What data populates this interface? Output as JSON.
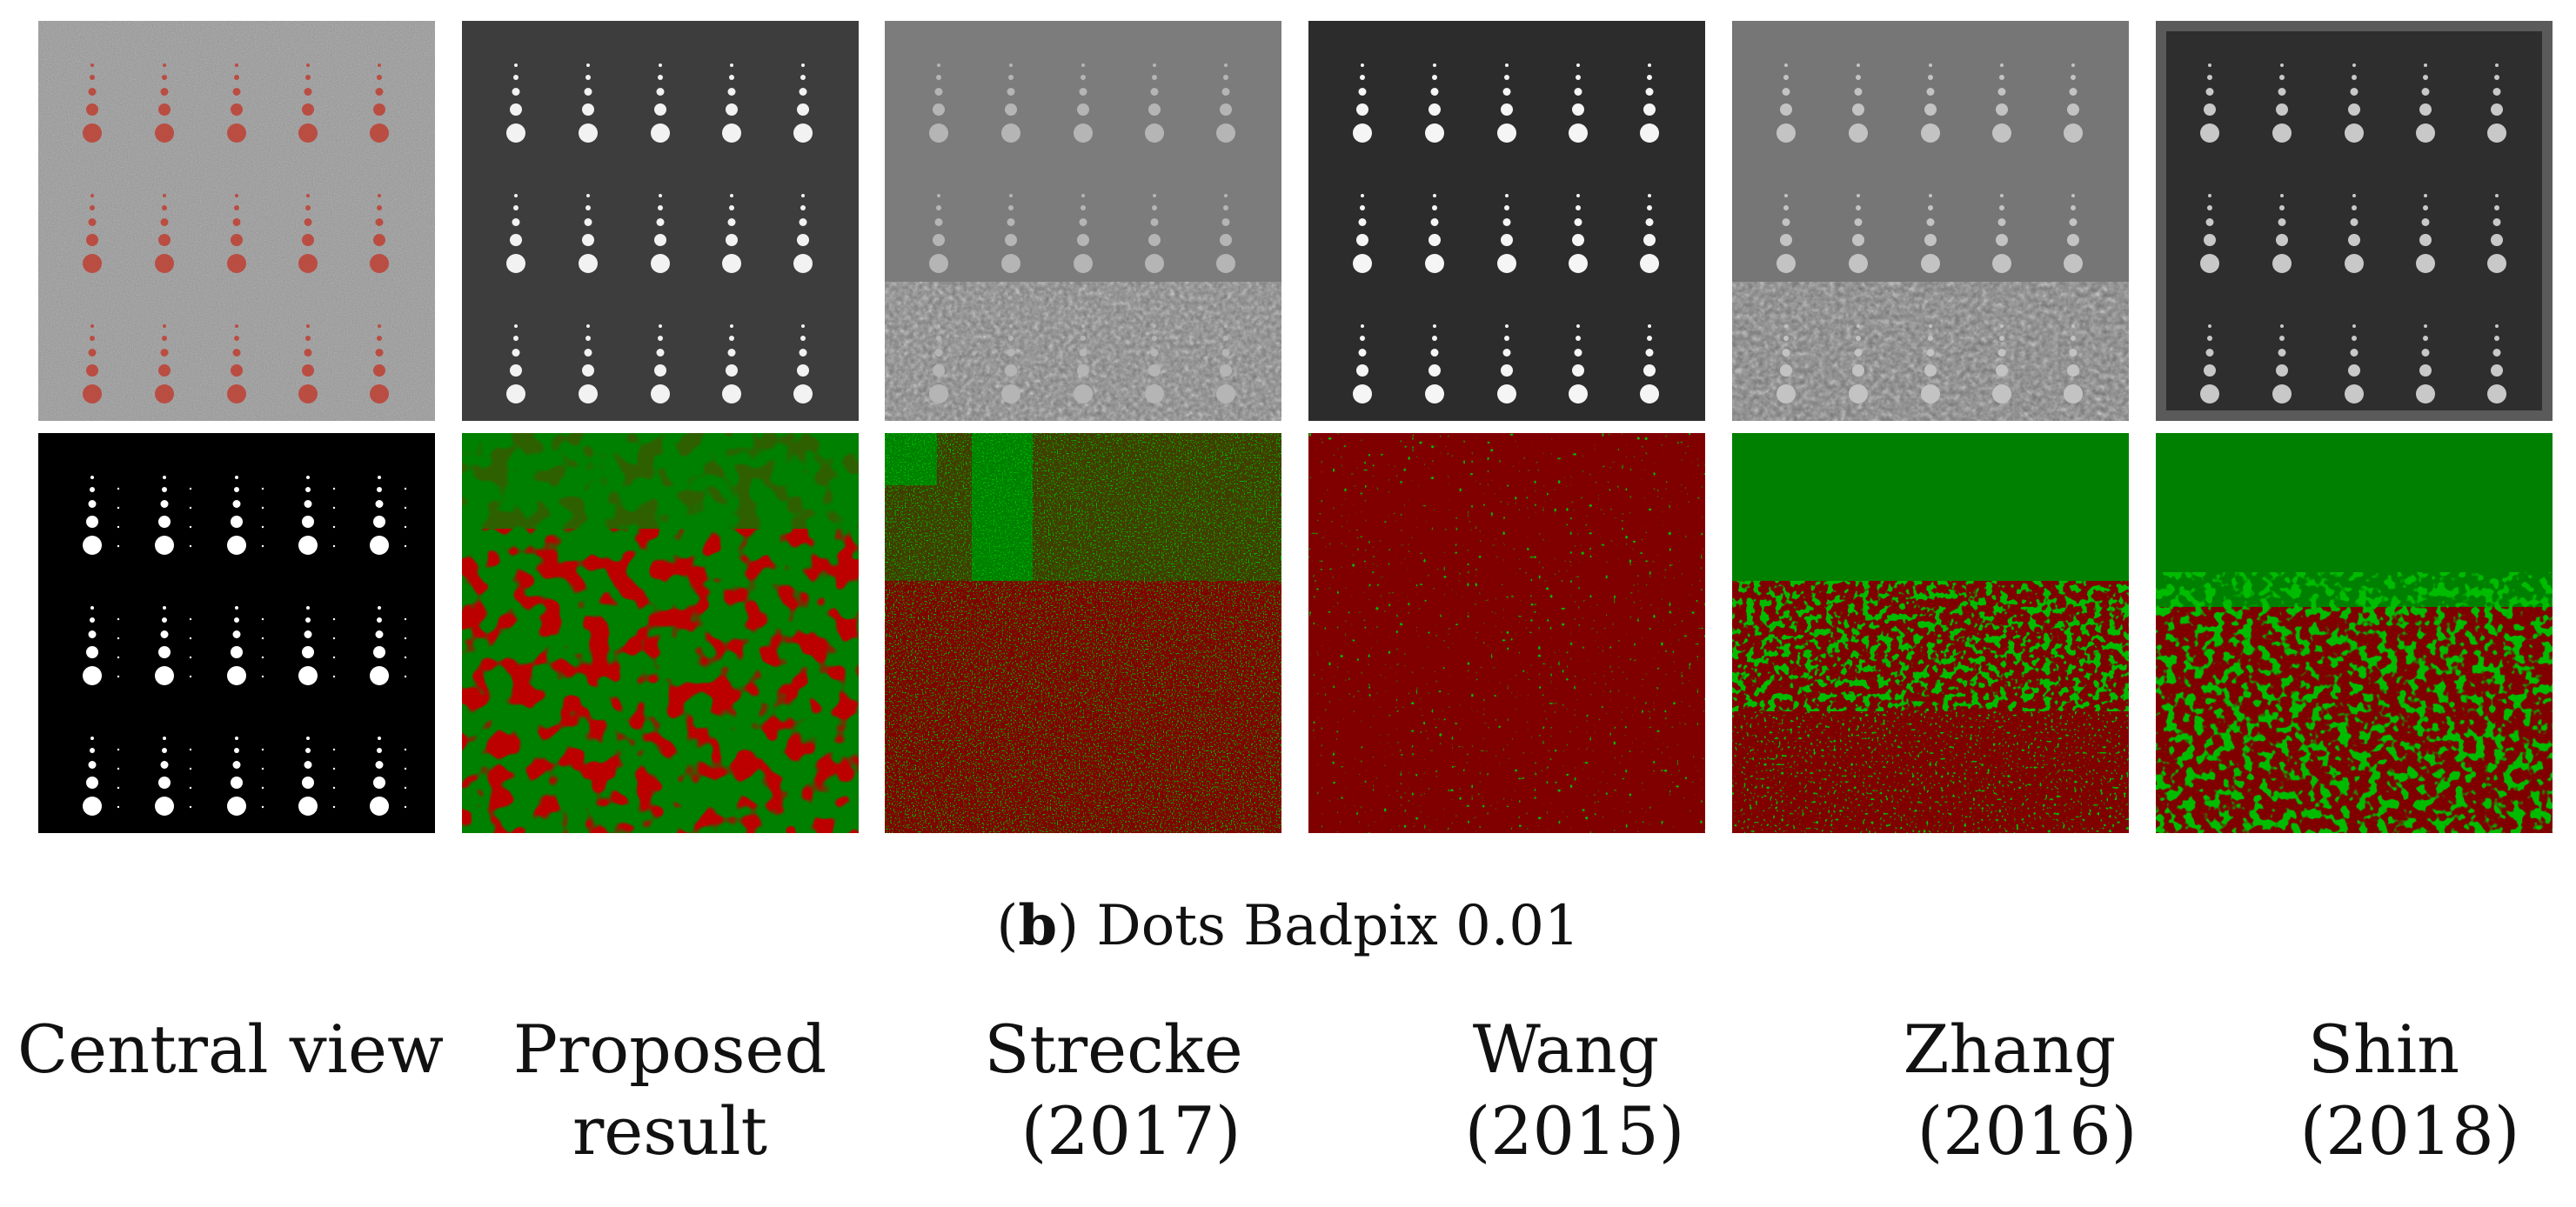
{
  "caption": {
    "letter": "b",
    "text": "Dots Badpix 0.01"
  },
  "columns": [
    {
      "line1": "Central view",
      "line2": ""
    },
    {
      "line1": "Proposed",
      "line2": "result"
    },
    {
      "line1": "Strecke",
      "line2": "(2017)"
    },
    {
      "line1": "Wang",
      "line2": "(2015)"
    },
    {
      "line1": "Zhang",
      "line2": "(2016)"
    },
    {
      "line1": "Shin",
      "line2": "(2018)"
    }
  ],
  "colors": {
    "badpix_good": "#008000",
    "badpix_bad": "#800000",
    "dot_red": "#c0392b",
    "disparity_bg_dark": "#3a3a3a",
    "disparity_bg_mid": "#7a7a7a",
    "ground_truth_bg": "#000000"
  },
  "panels": {
    "top_row": [
      "noisy-central-view",
      "proposed-disparity",
      "strecke-disparity",
      "wang-disparity",
      "zhang-disparity",
      "shin-disparity"
    ],
    "bottom_row": [
      "ground-truth-dots",
      "proposed-badpix",
      "strecke-badpix",
      "wang-badpix",
      "zhang-badpix",
      "shin-badpix"
    ]
  }
}
